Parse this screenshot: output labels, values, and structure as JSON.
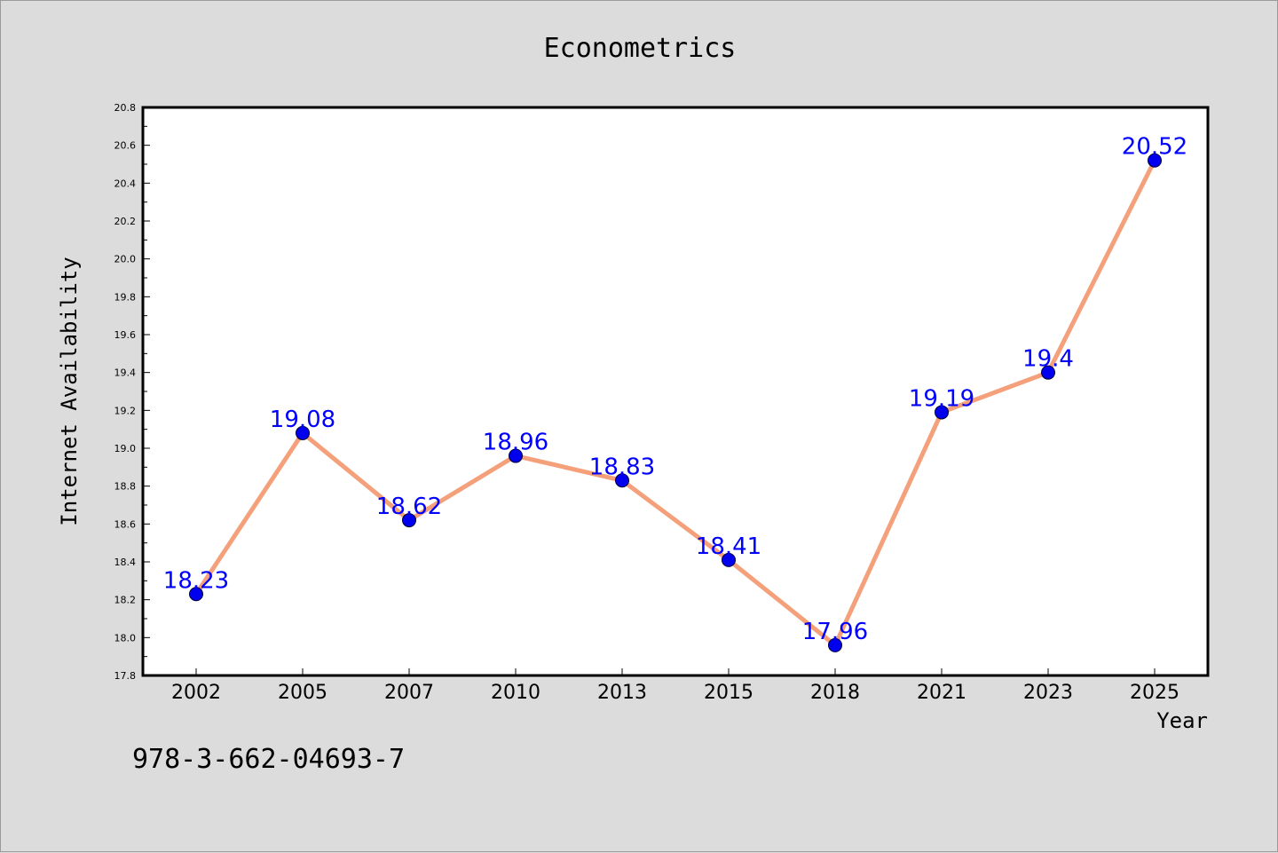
{
  "chart_data": {
    "type": "line",
    "title": "Econometrics",
    "xlabel": "Year",
    "ylabel": "Internet Availability",
    "categories": [
      "2002",
      "2005",
      "2007",
      "2010",
      "2013",
      "2015",
      "2018",
      "2021",
      "2023",
      "2025"
    ],
    "series": [
      {
        "values": [
          18.23,
          19.08,
          18.62,
          18.96,
          18.83,
          18.41,
          17.96,
          19.19,
          19.4,
          20.52
        ],
        "labels": [
          "18.23",
          "19.08",
          "18.62",
          "18.96",
          "18.83",
          "18.41",
          "17.96",
          "19.19",
          "19.4",
          "20.52"
        ]
      }
    ],
    "ylim": [
      17.8,
      20.8
    ],
    "yticks": [
      "17.8",
      "18.0",
      "18.2",
      "18.4",
      "18.6",
      "18.8",
      "19.0",
      "19.2",
      "19.4",
      "19.6",
      "19.8",
      "20.0",
      "20.2",
      "20.4",
      "20.6",
      "20.8"
    ],
    "grid": false,
    "colors": {
      "line": "#f4a07a",
      "marker": "#0000ee",
      "label": "#0000ff"
    }
  },
  "footnote": "978-3-662-04693-7"
}
